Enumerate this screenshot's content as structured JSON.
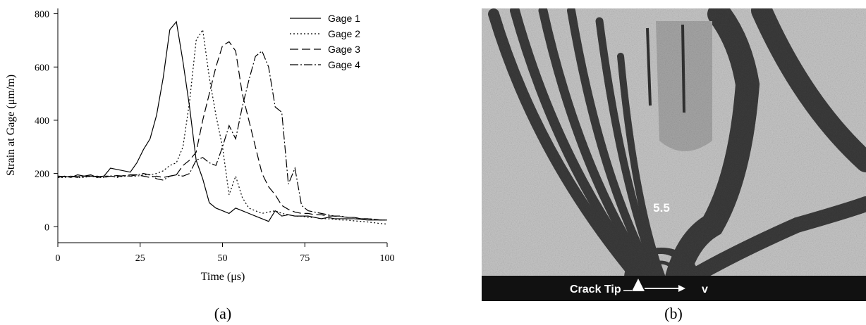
{
  "chart_data": {
    "type": "line",
    "xlabel": "Time (μs)",
    "ylabel": "Strain at Gage (μm/m)",
    "x": [
      0,
      2,
      4,
      6,
      8,
      10,
      12,
      14,
      16,
      18,
      20,
      22,
      24,
      26,
      28,
      30,
      32,
      34,
      36,
      38,
      40,
      42,
      44,
      46,
      48,
      50,
      52,
      54,
      56,
      58,
      60,
      62,
      64,
      66,
      68,
      70,
      72,
      74,
      76,
      78,
      80,
      82,
      84,
      86,
      88,
      90,
      92,
      94,
      96,
      98,
      100
    ],
    "series": [
      {
        "name": "Gage 1",
        "color": "#000000",
        "dash": "none",
        "values": [
          185,
          190,
          185,
          195,
          190,
          195,
          185,
          190,
          220,
          215,
          210,
          205,
          240,
          290,
          330,
          420,
          560,
          740,
          770,
          620,
          450,
          250,
          180,
          90,
          70,
          60,
          50,
          70,
          60,
          50,
          40,
          30,
          20,
          60,
          40,
          45,
          40,
          40,
          40,
          35,
          30,
          35,
          30,
          30,
          30,
          30,
          28,
          25,
          25,
          25,
          25
        ]
      },
      {
        "name": "Gage 2",
        "color": "#000000",
        "dash": "2,3",
        "values": [
          185,
          185,
          190,
          185,
          185,
          190,
          185,
          185,
          190,
          185,
          190,
          190,
          190,
          195,
          195,
          200,
          210,
          230,
          240,
          300,
          470,
          700,
          740,
          560,
          420,
          300,
          120,
          190,
          110,
          70,
          60,
          50,
          55,
          60,
          50,
          45,
          40,
          40,
          35,
          35,
          30,
          30,
          28,
          25,
          25,
          22,
          20,
          18,
          15,
          12,
          10
        ]
      },
      {
        "name": "Gage 3",
        "color": "#000000",
        "dash": "12,5",
        "values": [
          190,
          188,
          190,
          185,
          190,
          188,
          190,
          185,
          190,
          188,
          192,
          190,
          195,
          190,
          185,
          190,
          185,
          190,
          195,
          230,
          250,
          280,
          400,
          500,
          600,
          680,
          695,
          660,
          500,
          400,
          300,
          200,
          150,
          120,
          80,
          65,
          55,
          50,
          50,
          45,
          45,
          40,
          40,
          38,
          35,
          35,
          30,
          30,
          28,
          25,
          25
        ]
      },
      {
        "name": "Gage 4",
        "color": "#000000",
        "dash": "12,3,2,3",
        "values": [
          190,
          188,
          190,
          188,
          190,
          190,
          188,
          190,
          190,
          192,
          190,
          195,
          195,
          200,
          195,
          180,
          175,
          190,
          195,
          190,
          200,
          250,
          260,
          240,
          230,
          300,
          380,
          330,
          450,
          550,
          640,
          660,
          600,
          450,
          430,
          160,
          220,
          80,
          60,
          55,
          50,
          45,
          40,
          40,
          35,
          35,
          30,
          30,
          28,
          25,
          25
        ]
      }
    ],
    "xlim": [
      0,
      100
    ],
    "xticks": [
      0,
      25,
      50,
      75,
      100
    ],
    "ylim": [
      -60,
      820
    ],
    "yticks": [
      0,
      200,
      400,
      600,
      800
    ],
    "legend": "upper right"
  },
  "figure": {
    "panel_a": "(a)",
    "panel_b": "(b)",
    "fringe_order": "5.5",
    "crack_tip": "Crack Tip",
    "velocity": "v"
  }
}
